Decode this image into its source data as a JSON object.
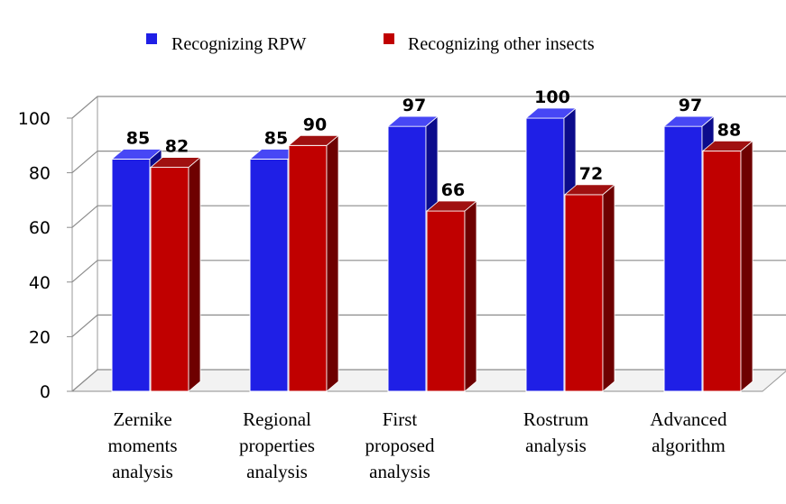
{
  "chart_data": {
    "type": "bar",
    "style": "3d-clustered-column",
    "categories": [
      [
        "Zernike",
        "moments",
        "analysis"
      ],
      [
        "Regional",
        "properties",
        "analysis"
      ],
      [
        "First",
        "proposed",
        "analysis"
      ],
      [
        "Rostrum",
        "analysis"
      ],
      [
        "Advanced",
        "algorithm"
      ]
    ],
    "series": [
      {
        "name": "Recognizing RPW",
        "values": [
          85,
          85,
          97,
          100,
          97
        ],
        "color": "#1f1fe6",
        "side_color": "#0c0c8c",
        "top_color": "#4747f5"
      },
      {
        "name": "Recognizing other insects",
        "values": [
          82,
          90,
          66,
          72,
          88
        ],
        "color": "#c00000",
        "side_color": "#6e0000",
        "top_color": "#a01010"
      }
    ],
    "ylim": [
      0,
      100
    ],
    "yticks": [
      "0",
      "20",
      "40",
      "60",
      "80",
      "100"
    ],
    "grid": true,
    "legend": "top",
    "title": "",
    "xlabel": "",
    "ylabel": ""
  }
}
